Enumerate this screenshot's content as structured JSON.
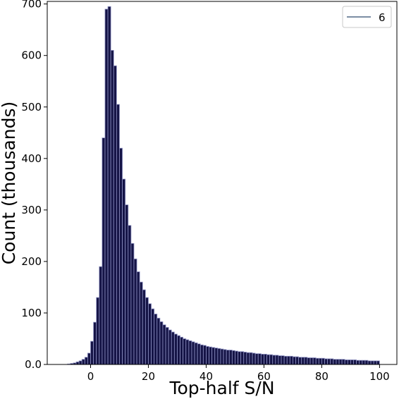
{
  "chart_data": {
    "type": "bar",
    "title": "",
    "xlabel": "Top-half S/N",
    "ylabel": "Count (thousands)",
    "xlim": [
      -15,
      106
    ],
    "ylim": [
      0,
      705
    ],
    "xticks": [
      0,
      20,
      40,
      60,
      80,
      100
    ],
    "yticks": [
      0.0,
      100,
      200,
      300,
      400,
      500,
      600,
      700
    ],
    "ytick_labels": [
      "0.0",
      "100",
      "200",
      "300",
      "400",
      "500",
      "600",
      "700"
    ],
    "legend": {
      "position": "top-right",
      "entries": [
        "6"
      ]
    },
    "grid": false,
    "colors": {
      "bar_fill": "#151446",
      "bar_edge": "#8e91c2",
      "legend_line": "#2f4a6e"
    },
    "bin_width": 1,
    "bin_left_edges": [
      -8,
      -7,
      -6,
      -5,
      -4,
      -3,
      -2,
      -1,
      0,
      1,
      2,
      3,
      4,
      5,
      6,
      7,
      8,
      9,
      10,
      11,
      12,
      13,
      14,
      15,
      16,
      17,
      18,
      19,
      20,
      21,
      22,
      23,
      24,
      25,
      26,
      27,
      28,
      29,
      30,
      31,
      32,
      33,
      34,
      35,
      36,
      37,
      38,
      39,
      40,
      41,
      42,
      43,
      44,
      45,
      46,
      47,
      48,
      49,
      50,
      51,
      52,
      53,
      54,
      55,
      56,
      57,
      58,
      59,
      60,
      61,
      62,
      63,
      64,
      65,
      66,
      67,
      68,
      69,
      70,
      71,
      72,
      73,
      74,
      75,
      76,
      77,
      78,
      79,
      80,
      81,
      82,
      83,
      84,
      85,
      86,
      87,
      88,
      89,
      90,
      91,
      92,
      93,
      94,
      95,
      96,
      97,
      98,
      99
    ],
    "values": [
      1,
      2,
      3,
      5,
      7,
      10,
      14,
      22,
      45,
      82,
      130,
      190,
      440,
      690,
      695,
      610,
      580,
      505,
      420,
      360,
      310,
      270,
      235,
      205,
      180,
      160,
      145,
      130,
      118,
      108,
      98,
      90,
      83,
      77,
      72,
      67,
      63,
      59,
      56,
      53,
      50,
      48,
      46,
      44,
      42,
      40,
      38,
      37,
      35,
      34,
      33,
      32,
      31,
      30,
      29,
      28,
      28,
      27,
      26,
      25,
      25,
      24,
      23,
      23,
      22,
      21,
      21,
      20,
      20,
      19,
      19,
      18,
      18,
      17,
      17,
      16,
      16,
      16,
      15,
      15,
      14,
      14,
      14,
      13,
      13,
      13,
      12,
      12,
      12,
      11,
      11,
      11,
      10,
      10,
      10,
      10,
      9,
      9,
      9,
      9,
      8,
      8,
      8,
      8,
      7,
      7,
      7,
      7
    ]
  }
}
